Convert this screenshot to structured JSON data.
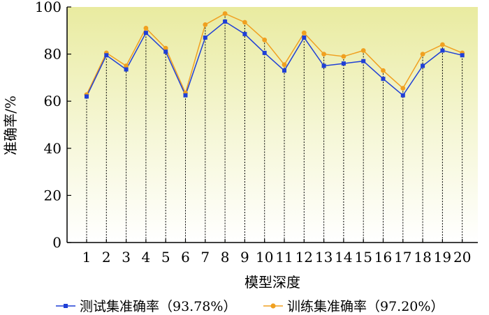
{
  "chart_data": {
    "type": "line",
    "xlabel": "模型深度",
    "ylabel": "准确率/%",
    "ylim": [
      0,
      100
    ],
    "yticks": [
      0,
      20,
      40,
      60,
      80,
      100
    ],
    "x": [
      1,
      2,
      3,
      4,
      5,
      6,
      7,
      8,
      9,
      10,
      11,
      12,
      13,
      14,
      15,
      16,
      17,
      18,
      19,
      20
    ],
    "grid": false,
    "legend_position": "bottom",
    "series": [
      {
        "name": "测试集准确率（93.78%）",
        "color": "#1f3fd6",
        "marker": "square",
        "values": [
          62,
          79.5,
          73.5,
          89,
          81,
          62.5,
          87,
          93.8,
          88.5,
          80.5,
          73,
          87,
          75,
          76,
          77,
          69.5,
          62.5,
          75,
          81.5,
          79.5
        ]
      },
      {
        "name": "训练集准确率（97.20%）",
        "color": "#f0a020",
        "marker": "circle",
        "values": [
          62.8,
          80.5,
          75,
          91,
          82.5,
          63.5,
          92.5,
          97.2,
          93.5,
          86,
          75.5,
          89,
          80,
          79,
          81.5,
          73,
          65.5,
          80,
          84,
          80.5
        ]
      }
    ]
  }
}
